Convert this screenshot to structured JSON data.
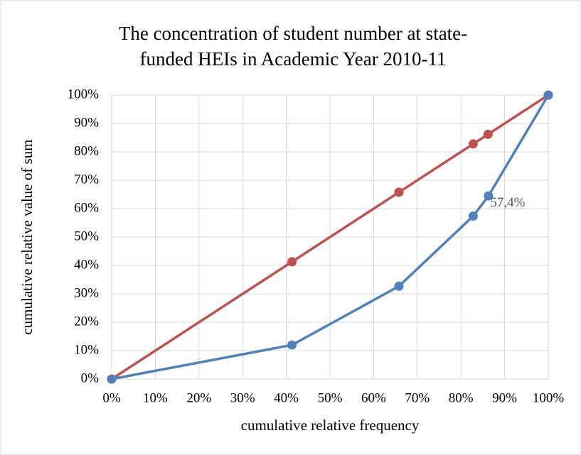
{
  "chart_data": {
    "type": "line",
    "title": [
      "The concentration of student number at state-",
      "funded HEIs in Academic Year 2010-11"
    ],
    "x_label": "cumulative relative frequency",
    "y_label": "cumulative relative value of sum",
    "xlim": [
      0,
      100
    ],
    "ylim": [
      0,
      100
    ],
    "xticks": [
      {
        "value": 0,
        "label": "0%"
      },
      {
        "value": 10,
        "label": "10%"
      },
      {
        "value": 20,
        "label": "20%"
      },
      {
        "value": 30,
        "label": "30%"
      },
      {
        "value": 40,
        "label": "40%"
      },
      {
        "value": 50,
        "label": "50%"
      },
      {
        "value": 60,
        "label": "60%"
      },
      {
        "value": 70,
        "label": "70%"
      },
      {
        "value": 80,
        "label": "80%"
      },
      {
        "value": 90,
        "label": "90%"
      },
      {
        "value": 100,
        "label": "100%"
      }
    ],
    "yticks": [
      {
        "value": 0,
        "label": "0%"
      },
      {
        "value": 10,
        "label": "10%"
      },
      {
        "value": 20,
        "label": "20%"
      },
      {
        "value": 30,
        "label": "30%"
      },
      {
        "value": 40,
        "label": "40%"
      },
      {
        "value": 50,
        "label": "50%"
      },
      {
        "value": 60,
        "label": "60%"
      },
      {
        "value": 70,
        "label": "70%"
      },
      {
        "value": 80,
        "label": "80%"
      },
      {
        "value": 90,
        "label": "90%"
      },
      {
        "value": 100,
        "label": "100%"
      }
    ],
    "grid": true,
    "series": [
      {
        "color": "#c0504d",
        "x": [
          0,
          41.3,
          65.8,
          82.8,
          86.2,
          100
        ],
        "values": [
          0,
          41.3,
          65.8,
          82.8,
          86.2,
          100
        ]
      },
      {
        "color": "#4f81bd",
        "x": [
          0,
          41.3,
          65.8,
          82.8,
          86.3,
          100
        ],
        "values": [
          0,
          12,
          32.7,
          57.4,
          64.5,
          100
        ],
        "value_labels": [
          null,
          null,
          null,
          "57,4%",
          null,
          null
        ]
      }
    ]
  }
}
